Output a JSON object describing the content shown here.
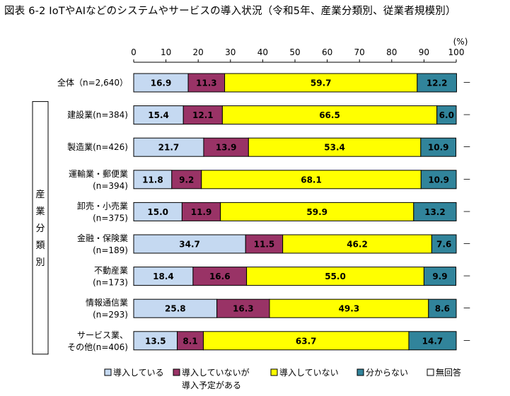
{
  "title": "図表 6-2 IoTやAIなどのシステムやサービスの導入状況（令和5年、産業分類別、従業者規模別）",
  "unit_label": "(%)",
  "group_label": "産業分類別",
  "dash_label": "－",
  "chart_data": {
    "type": "bar",
    "orientation": "horizontal",
    "stacked": true,
    "title": "図表 6-2 IoTやAIなどのシステムやサービスの導入状況（令和5年、産業分類別、従業者規模別）",
    "xlabel": "",
    "ylabel": "",
    "xlim": [
      0,
      100
    ],
    "x_ticks": [
      0,
      10,
      20,
      30,
      40,
      50,
      60,
      70,
      80,
      90,
      100
    ],
    "grid": false,
    "legend_position": "bottom",
    "categories": [
      [
        "全体（n=2,640）"
      ],
      [
        "建設業(n=384)"
      ],
      [
        "製造業(n=426)"
      ],
      [
        "運輸業・郵便業",
        "(n=394)"
      ],
      [
        "卸売・小売業",
        "(n=375)"
      ],
      [
        "金融・保険業",
        "(n=189)"
      ],
      [
        "不動産業",
        "(n=173)"
      ],
      [
        "情報通信業",
        "(n=293)"
      ],
      [
        "サービス業、",
        "その他(n=406)"
      ]
    ],
    "series": [
      {
        "name": "導入している",
        "color": "#c5d9f1",
        "values": [
          16.9,
          15.4,
          21.7,
          11.8,
          15.0,
          34.7,
          18.4,
          25.8,
          13.5
        ]
      },
      {
        "name": "導入していないが導入予定がある",
        "color": "#993366",
        "values": [
          11.3,
          12.1,
          13.9,
          9.2,
          11.9,
          11.5,
          16.6,
          16.3,
          8.1
        ]
      },
      {
        "name": "導入していない",
        "color": "#ffff00",
        "values": [
          59.7,
          66.5,
          53.4,
          68.1,
          59.9,
          46.2,
          55.0,
          49.3,
          63.7
        ]
      },
      {
        "name": "分からない",
        "color": "#31849b",
        "values": [
          12.2,
          6.0,
          10.9,
          10.9,
          13.2,
          7.6,
          9.9,
          8.6,
          14.7
        ]
      },
      {
        "name": "無回答",
        "color": "#ffffff",
        "values": [
          null,
          null,
          null,
          null,
          null,
          null,
          null,
          null,
          null
        ]
      }
    ]
  },
  "legend": [
    {
      "lines": [
        "導入している"
      ],
      "color": "#c5d9f1"
    },
    {
      "lines": [
        "導入していないが",
        "導入予定がある"
      ],
      "color": "#993366"
    },
    {
      "lines": [
        "導入していない"
      ],
      "color": "#ffff00"
    },
    {
      "lines": [
        "分からない"
      ],
      "color": "#31849b"
    },
    {
      "lines": [
        "無回答"
      ],
      "color": "#ffffff"
    }
  ]
}
